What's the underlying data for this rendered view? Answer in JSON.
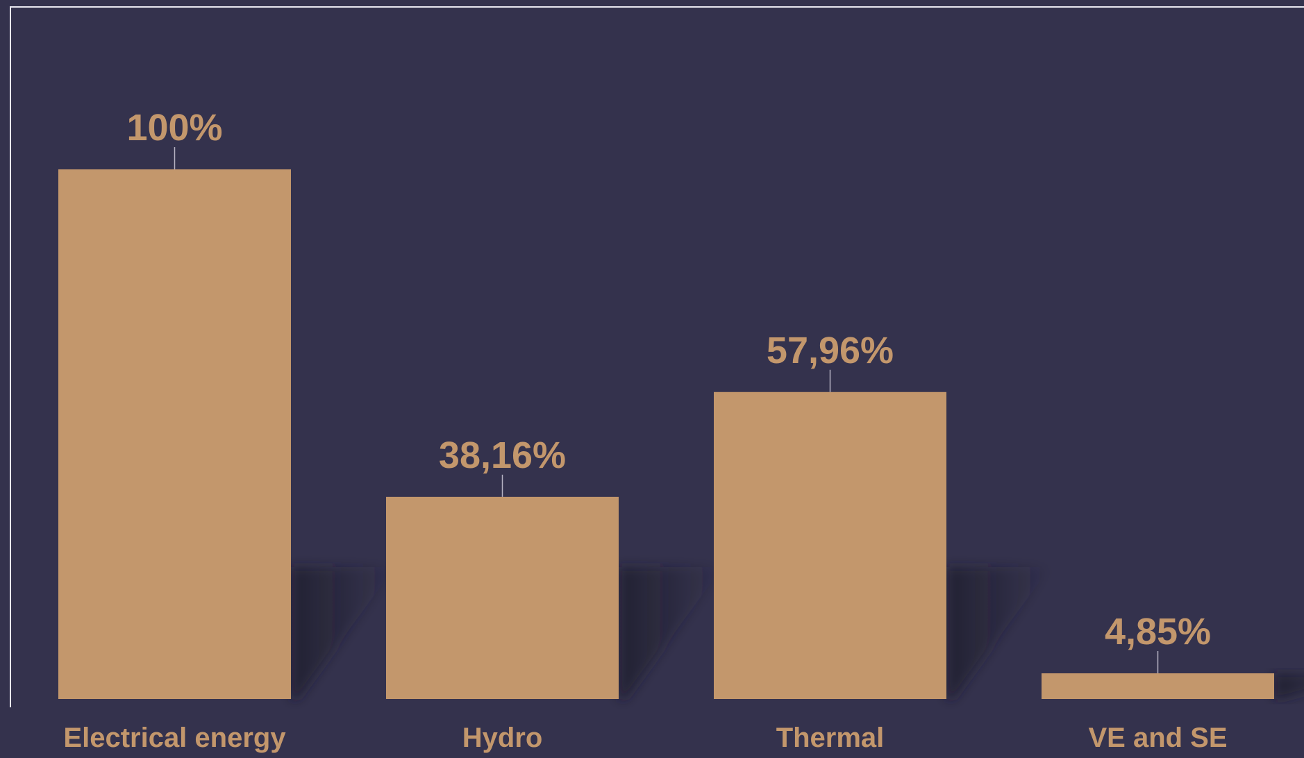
{
  "chart_data": {
    "type": "bar",
    "categories": [
      "Electrical energy",
      "Hydro",
      "Thermal",
      "VE and SE"
    ],
    "values": [
      100,
      38.16,
      57.96,
      4.85
    ],
    "data_labels": [
      "100%",
      "38,16%",
      "57,96%",
      "4,85%"
    ],
    "title": "",
    "xlabel": "",
    "ylabel": "",
    "ylim": [
      0,
      100
    ],
    "grid": false,
    "legend": "none"
  },
  "colors": {
    "background": "#34324d",
    "bar": "#c3976c",
    "label": "#c3976c",
    "shadow": "#22212f"
  }
}
